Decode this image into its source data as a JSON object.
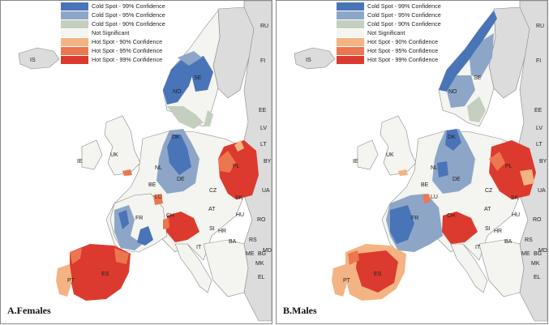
{
  "legend": [
    {
      "label": "Cold Spot - 99% Confidence",
      "color": "#4a74b8"
    },
    {
      "label": "Cold Spot - 95% Confidence",
      "color": "#8da6c8"
    },
    {
      "label": "Cold Spot - 90% Confidence",
      "color": "#c4cfbf"
    },
    {
      "label": "Not Significant",
      "color": "#f4f4f0"
    },
    {
      "label": "Hot Spot - 90% Confidence",
      "color": "#f4b383"
    },
    {
      "label": "Hot Spot - 95% Confidence",
      "color": "#ec7650"
    },
    {
      "label": "Hot Spot - 99% Confidence",
      "color": "#dc3a2e"
    }
  ],
  "colors": {
    "sea": "#ffffff",
    "land_other": "#dcdcdc",
    "outline": "#555555"
  },
  "panels": [
    {
      "title": "A.Females",
      "labels": [
        "IS",
        "NO",
        "SE",
        "FI",
        "RU",
        "EE",
        "LV",
        "LT",
        "BY",
        "UA",
        "PL",
        "DK",
        "UK",
        "IE",
        "NL",
        "BE",
        "DE",
        "CZ",
        "SK",
        "LU",
        "FR",
        "CH",
        "AT",
        "HU",
        "RO",
        "SI",
        "HR",
        "BA",
        "RS",
        "ME",
        "BG",
        "MK",
        "EL",
        "IT",
        "ES",
        "PT",
        "MD"
      ]
    },
    {
      "title": "B.Males",
      "labels": [
        "IS",
        "NO",
        "SE",
        "FI",
        "RU",
        "EE",
        "LV",
        "LT",
        "BY",
        "UA",
        "PL",
        "DK",
        "UK",
        "IE",
        "NL",
        "BE",
        "DE",
        "CZ",
        "SK",
        "LU",
        "FR",
        "CH",
        "AT",
        "HU",
        "RO",
        "SI",
        "HR",
        "BA",
        "RS",
        "ME",
        "BG",
        "MK",
        "EL",
        "IT",
        "ES",
        "PT",
        "MD"
      ]
    }
  ]
}
